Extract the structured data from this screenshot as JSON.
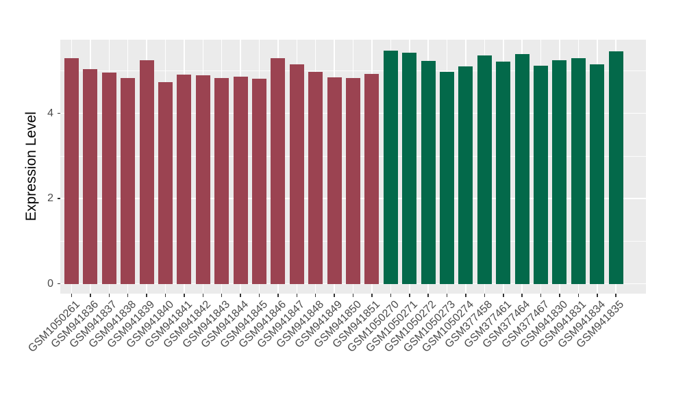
{
  "chart_data": {
    "type": "bar",
    "title": "",
    "xlabel": "",
    "ylabel": "Expression Level",
    "categories": [
      "GSM1050261",
      "GSM941836",
      "GSM941837",
      "GSM941838",
      "GSM941839",
      "GSM941840",
      "GSM941841",
      "GSM941842",
      "GSM941843",
      "GSM941844",
      "GSM941845",
      "GSM941846",
      "GSM941847",
      "GSM941848",
      "GSM941849",
      "GSM941850",
      "GSM941851",
      "GSM1050270",
      "GSM1050271",
      "GSM1050272",
      "GSM1050273",
      "GSM1050274",
      "GSM377458",
      "GSM377461",
      "GSM377464",
      "GSM377467",
      "GSM941830",
      "GSM941831",
      "GSM941834",
      "GSM941835"
    ],
    "values": [
      5.3,
      5.04,
      4.96,
      4.83,
      5.25,
      4.73,
      4.91,
      4.89,
      4.83,
      4.87,
      4.82,
      5.3,
      5.16,
      4.97,
      4.85,
      4.83,
      4.93,
      5.47,
      5.42,
      5.24,
      4.98,
      5.1,
      5.36,
      5.22,
      5.39,
      5.12,
      5.25,
      5.29,
      5.16,
      5.45
    ],
    "groups": [
      "left",
      "left",
      "left",
      "left",
      "left",
      "left",
      "left",
      "left",
      "left",
      "left",
      "left",
      "left",
      "left",
      "left",
      "left",
      "left",
      "left",
      "right",
      "right",
      "right",
      "right",
      "right",
      "right",
      "right",
      "right",
      "right",
      "right",
      "right",
      "right",
      "right"
    ],
    "group_colors": {
      "left": "#9B4351",
      "right": "#03694A"
    },
    "y_ticks": [
      0,
      2,
      4
    ],
    "y_minor_ticks": [
      1,
      3,
      5
    ],
    "ylim": [
      -0.23,
      5.73
    ],
    "grid_on": true,
    "legend_position": "none",
    "panel_bg": "#EBEBEB",
    "grid_major_color": "#FFFFFF",
    "grid_minor_color": "#FFFFFF",
    "tick_mark_color": "#333333",
    "tick_label_color": "#4A4A4A",
    "axis_title_color": "#000000"
  }
}
